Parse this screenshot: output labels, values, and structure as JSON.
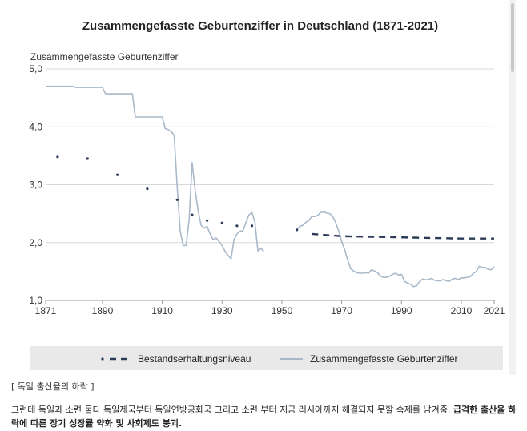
{
  "chart_data": {
    "type": "line",
    "title": "Zusammengefasste Geburtenziffer in Deutschland (1871-2021)",
    "ylabel": "Zusammengefasste Geburtenziffer",
    "xlabel": "",
    "xlim": [
      1871,
      2021
    ],
    "ylim": [
      1.0,
      5.0
    ],
    "x_ticks": [
      "1871",
      "1890",
      "1910",
      "1930",
      "1950",
      "1970",
      "1990",
      "2010",
      "2021"
    ],
    "x_tick_values": [
      1871,
      1890,
      1910,
      1930,
      1950,
      1970,
      1990,
      2010,
      2021
    ],
    "y_ticks": [
      "5,0",
      "4,0",
      "3,0",
      "2,0",
      "1,0"
    ],
    "y_tick_values": [
      5.0,
      4.0,
      3.0,
      2.0,
      1.0
    ],
    "grid": "horizontal",
    "legend_position": "bottom",
    "series": [
      {
        "name": "Bestandserhaltungsniveau",
        "style": "dots-then-dashes",
        "color": "#2b3a55",
        "dots": [
          [
            1875,
            3.48
          ],
          [
            1885,
            3.45
          ],
          [
            1895,
            3.17
          ],
          [
            1905,
            2.93
          ],
          [
            1915,
            2.74
          ],
          [
            1920,
            2.48
          ],
          [
            1925,
            2.38
          ],
          [
            1930,
            2.34
          ],
          [
            1935,
            2.29
          ],
          [
            1940,
            2.29
          ],
          [
            1955,
            2.22
          ]
        ],
        "dashes": [
          [
            1960,
            2.15
          ],
          [
            1965,
            2.13
          ],
          [
            1970,
            2.11
          ],
          [
            1980,
            2.1
          ],
          [
            1990,
            2.09
          ],
          [
            2000,
            2.08
          ],
          [
            2010,
            2.07
          ],
          [
            2021,
            2.07
          ]
        ]
      },
      {
        "name": "Zusammengefasste Geburtenziffer",
        "style": "solid",
        "color": "#a9b9c9",
        "segments": [
          [
            [
              1871,
              4.7
            ],
            [
              1880,
              4.7
            ],
            [
              1881,
              4.68
            ],
            [
              1890,
              4.68
            ],
            [
              1891,
              4.57
            ],
            [
              1900,
              4.57
            ],
            [
              1901,
              4.17
            ],
            [
              1910,
              4.17
            ],
            [
              1911,
              3.97
            ],
            [
              1912,
              3.95
            ],
            [
              1913,
              3.92
            ],
            [
              1914,
              3.85
            ],
            [
              1915,
              2.95
            ],
            [
              1916,
              2.2
            ],
            [
              1917,
              1.95
            ],
            [
              1918,
              1.95
            ],
            [
              1919,
              2.4
            ],
            [
              1920,
              3.38
            ],
            [
              1921,
              2.9
            ],
            [
              1922,
              2.55
            ],
            [
              1923,
              2.3
            ],
            [
              1924,
              2.25
            ],
            [
              1925,
              2.28
            ],
            [
              1926,
              2.15
            ],
            [
              1927,
              2.05
            ],
            [
              1928,
              2.08
            ],
            [
              1929,
              2.02
            ],
            [
              1930,
              1.95
            ],
            [
              1931,
              1.85
            ],
            [
              1932,
              1.78
            ],
            [
              1933,
              1.72
            ],
            [
              1934,
              2.05
            ],
            [
              1935,
              2.15
            ],
            [
              1936,
              2.2
            ],
            [
              1937,
              2.2
            ],
            [
              1938,
              2.35
            ],
            [
              1939,
              2.48
            ],
            [
              1940,
              2.52
            ],
            [
              1941,
              2.35
            ],
            [
              1942,
              1.85
            ],
            [
              1943,
              1.9
            ],
            [
              1944,
              1.85
            ]
          ],
          [
            [
              1955,
              2.22
            ],
            [
              1956,
              2.28
            ],
            [
              1957,
              2.3
            ],
            [
              1958,
              2.35
            ],
            [
              1959,
              2.38
            ],
            [
              1960,
              2.45
            ],
            [
              1961,
              2.45
            ],
            [
              1962,
              2.47
            ],
            [
              1963,
              2.52
            ],
            [
              1964,
              2.53
            ],
            [
              1965,
              2.51
            ],
            [
              1966,
              2.5
            ],
            [
              1967,
              2.45
            ],
            [
              1968,
              2.35
            ],
            [
              1969,
              2.2
            ],
            [
              1970,
              2.02
            ],
            [
              1971,
              1.88
            ],
            [
              1972,
              1.7
            ],
            [
              1973,
              1.55
            ],
            [
              1974,
              1.51
            ],
            [
              1975,
              1.48
            ],
            [
              1976,
              1.47
            ],
            [
              1977,
              1.47
            ],
            [
              1978,
              1.48
            ],
            [
              1979,
              1.47
            ],
            [
              1980,
              1.53
            ],
            [
              1981,
              1.51
            ],
            [
              1982,
              1.48
            ],
            [
              1983,
              1.42
            ],
            [
              1984,
              1.4
            ],
            [
              1985,
              1.4
            ],
            [
              1986,
              1.42
            ],
            [
              1987,
              1.45
            ],
            [
              1988,
              1.47
            ],
            [
              1989,
              1.44
            ],
            [
              1990,
              1.45
            ],
            [
              1991,
              1.33
            ],
            [
              1992,
              1.3
            ],
            [
              1993,
              1.28
            ],
            [
              1994,
              1.24
            ],
            [
              1995,
              1.25
            ],
            [
              1996,
              1.32
            ],
            [
              1997,
              1.37
            ],
            [
              1998,
              1.36
            ],
            [
              1999,
              1.36
            ],
            [
              2000,
              1.38
            ],
            [
              2001,
              1.35
            ],
            [
              2002,
              1.34
            ],
            [
              2003,
              1.34
            ],
            [
              2004,
              1.36
            ],
            [
              2005,
              1.34
            ],
            [
              2006,
              1.33
            ],
            [
              2007,
              1.37
            ],
            [
              2008,
              1.38
            ],
            [
              2009,
              1.36
            ],
            [
              2010,
              1.39
            ],
            [
              2011,
              1.39
            ],
            [
              2012,
              1.4
            ],
            [
              2013,
              1.41
            ],
            [
              2014,
              1.47
            ],
            [
              2015,
              1.5
            ],
            [
              2016,
              1.59
            ],
            [
              2017,
              1.57
            ],
            [
              2018,
              1.57
            ],
            [
              2019,
              1.54
            ],
            [
              2020,
              1.53
            ],
            [
              2021,
              1.58
            ]
          ]
        ]
      }
    ],
    "legend": [
      {
        "label": "Bestandserhaltungsniveau",
        "marker": "dot-dash"
      },
      {
        "label": "Zusammengefasste Geburtenziffer",
        "marker": "line"
      }
    ]
  },
  "caption": "[ 독일 출산율의 하락 ]",
  "body_text_plain": "그런데 독일과 소련 둘다 독일제국부터 독일연방공화국 그리고 소련 부터 지금 러시아까지 해결되지 못할 숙제를 남겨줌. ",
  "body_text_strong": "급격한 출산율 하락에 따른 장기 성장률 약화 및 사회제도 붕괴.",
  "colors": {
    "rate_line": "#a9b9c9",
    "replacement_line": "#2b3a55",
    "grid": "#d9d9d9",
    "legend_bg": "#e9e9e9",
    "axis_text": "#333333"
  }
}
